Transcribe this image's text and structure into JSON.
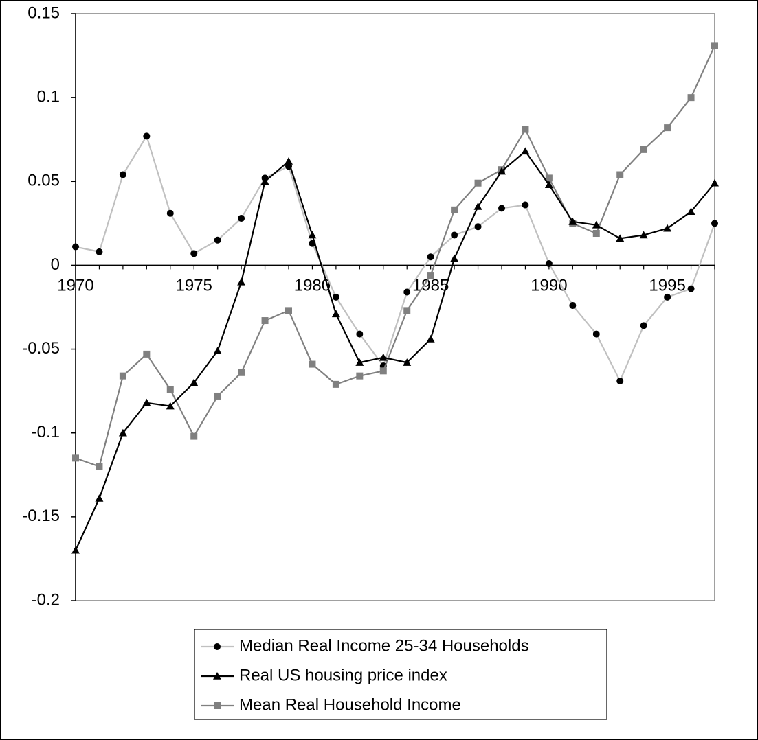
{
  "chart_data": {
    "type": "line",
    "title": "",
    "xlabel": "",
    "ylabel": "",
    "ylim": [
      -0.2,
      0.15
    ],
    "xlim": [
      1970,
      1997
    ],
    "xticks": [
      "1970",
      "1975",
      "1980",
      "1985",
      "1990",
      "1995"
    ],
    "yticks": [
      "0.15",
      "0.1",
      "0.05",
      "0",
      "-0.05",
      "-0.1",
      "-0.15",
      "-0.2"
    ],
    "grid": false,
    "legend_position": "bottom",
    "x": [
      1970,
      1971,
      1972,
      1973,
      1974,
      1975,
      1976,
      1977,
      1978,
      1979,
      1980,
      1981,
      1982,
      1983,
      1984,
      1985,
      1986,
      1987,
      1988,
      1989,
      1990,
      1991,
      1992,
      1993,
      1994,
      1995,
      1996,
      1997
    ],
    "series": [
      {
        "name": "Median Real Income 25-34 Households",
        "color": "#c0c0c0",
        "marker": "circle",
        "values": [
          0.011,
          0.008,
          0.054,
          0.077,
          0.031,
          0.007,
          0.015,
          0.028,
          0.052,
          0.059,
          0.013,
          -0.019,
          -0.041,
          -0.06,
          -0.016,
          0.005,
          0.018,
          0.023,
          0.034,
          0.036,
          0.001,
          -0.024,
          -0.041,
          -0.069,
          -0.036,
          -0.019,
          -0.014,
          0.025
        ]
      },
      {
        "name": "Real US housing price index",
        "color": "#000000",
        "marker": "triangle",
        "values": [
          -0.17,
          -0.139,
          -0.1,
          -0.082,
          -0.084,
          -0.07,
          -0.051,
          -0.01,
          0.05,
          0.062,
          0.018,
          -0.029,
          -0.058,
          -0.055,
          -0.058,
          -0.044,
          0.004,
          0.035,
          0.056,
          0.068,
          0.048,
          0.026,
          0.024,
          0.016,
          0.018,
          0.022,
          0.032,
          0.049
        ]
      },
      {
        "name": "Mean Real Household Income",
        "color": "#808080",
        "marker": "square",
        "values": [
          -0.115,
          -0.12,
          -0.066,
          -0.053,
          -0.074,
          -0.102,
          -0.078,
          -0.064,
          -0.033,
          -0.027,
          -0.059,
          -0.071,
          -0.066,
          -0.063,
          -0.027,
          -0.006,
          0.033,
          0.049,
          0.057,
          0.081,
          0.052,
          0.025,
          0.019,
          0.054,
          0.069,
          0.082,
          0.1,
          0.131
        ]
      }
    ]
  }
}
